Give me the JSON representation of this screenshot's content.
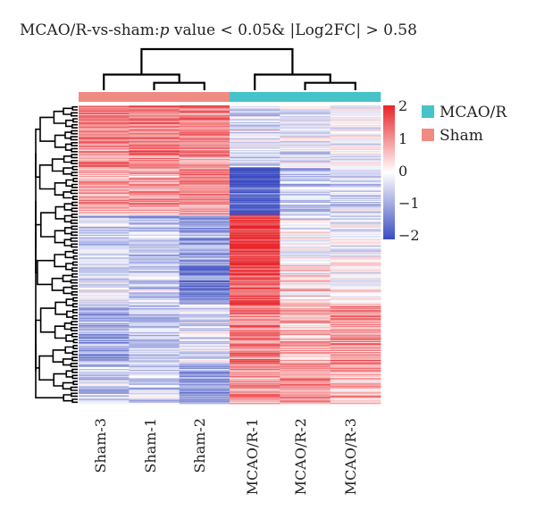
{
  "chart_data": {
    "type": "heatmap",
    "title_prefix": "MCAO/R-vs-sham:",
    "title_p": "p",
    "title_suffix": " value < 0.05& |Log2FC| > 0.58",
    "columns": [
      "Sham-3",
      "Sham-1",
      "Sham-2",
      "MCAO/R-1",
      "MCAO/R-2",
      "MCAO/R-3"
    ],
    "column_groups": [
      "Sham",
      "Sham",
      "Sham",
      "MCAO/R",
      "MCAO/R",
      "MCAO/R"
    ],
    "legend": [
      {
        "name": "MCAO/R",
        "color": "#45c3c8"
      },
      {
        "name": "Sham",
        "color": "#f08b84"
      }
    ],
    "color_scale": {
      "min": -2,
      "max": 2,
      "low": "#3b4cc0",
      "mid": "#ffffff",
      "high": "#e8252b"
    },
    "colorbar_ticks": [
      "2",
      "1",
      "0",
      "−1",
      "−2"
    ],
    "row_blocks": [
      {
        "rows": 62,
        "means": [
          1.1,
          1.2,
          1.1,
          -0.4,
          -0.3,
          -0.1
        ]
      },
      {
        "rows": 48,
        "means": [
          0.8,
          0.9,
          1.0,
          -1.9,
          -0.6,
          -0.4
        ]
      },
      {
        "rows": 50,
        "means": [
          -0.5,
          -0.7,
          -0.9,
          1.9,
          -0.1,
          -0.2
        ]
      },
      {
        "rows": 40,
        "means": [
          -0.2,
          -0.4,
          -1.3,
          1.4,
          0.3,
          -0.1
        ]
      },
      {
        "rows": 60,
        "means": [
          -0.9,
          -0.6,
          -0.4,
          1.2,
          0.7,
          1.0
        ]
      },
      {
        "rows": 40,
        "means": [
          -0.6,
          -0.5,
          -1.0,
          0.9,
          1.1,
          0.6
        ]
      }
    ],
    "column_dendrogram": [
      {
        "left": 1,
        "right": 2,
        "height": 0.18
      },
      {
        "left": 0,
        "right": 6,
        "height": 0.38
      },
      {
        "left": 4,
        "right": 5,
        "height": 0.18
      },
      {
        "left": 3,
        "right": 8,
        "height": 0.38
      },
      {
        "left": 7,
        "right": 9,
        "height": 1.0
      }
    ]
  }
}
